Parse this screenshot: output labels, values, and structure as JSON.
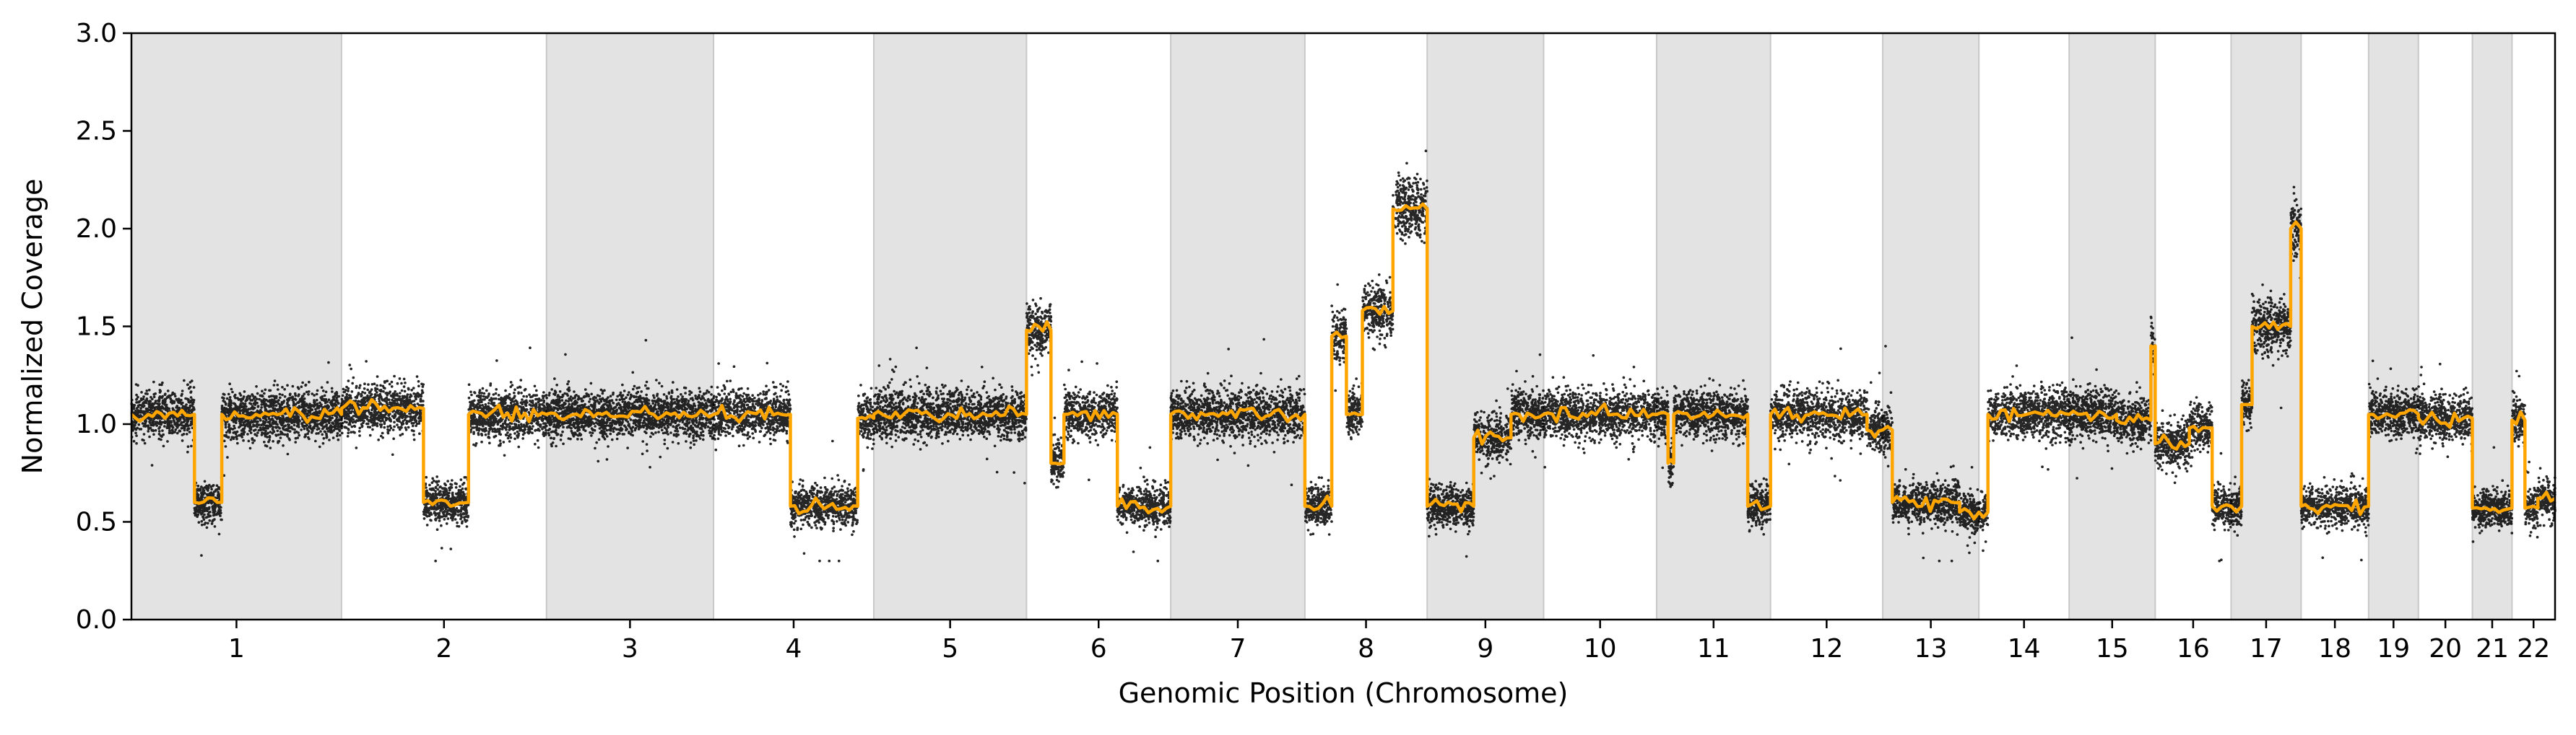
{
  "chart_data": {
    "type": "scatter",
    "xlabel": "Genomic Position (Chromosome)",
    "ylabel": "Normalized Coverage",
    "ylim": [
      0,
      3.0
    ],
    "yticks": [
      "0.0",
      "0.5",
      "1.0",
      "1.5",
      "2.0",
      "2.5",
      "3.0"
    ],
    "grid": false,
    "legend": "none",
    "shading": "alternating grey bands mark odd chromosomes",
    "colors": {
      "points": "#000000",
      "segments": "#ffa500",
      "band": "#e3e3e3",
      "band_edge": "#c8c8c8"
    },
    "chromosomes": [
      {
        "label": "1",
        "length": 249,
        "cn": [
          [
            0,
            0.3,
            1.05
          ],
          [
            0.3,
            0.43,
            0.6
          ],
          [
            0.43,
            1.0,
            1.05
          ]
        ]
      },
      {
        "label": "2",
        "length": 243,
        "cn": [
          [
            0,
            0.4,
            1.08
          ],
          [
            0.4,
            0.62,
            0.6
          ],
          [
            0.62,
            1.0,
            1.05
          ]
        ]
      },
      {
        "label": "3",
        "length": 198,
        "cn": [
          [
            0,
            1.0,
            1.05
          ]
        ]
      },
      {
        "label": "4",
        "length": 190,
        "cn": [
          [
            0,
            0.48,
            1.05
          ],
          [
            0.48,
            0.9,
            0.58
          ],
          [
            0.9,
            1.0,
            1.03
          ]
        ]
      },
      {
        "label": "5",
        "length": 181,
        "cn": [
          [
            0,
            1.0,
            1.05
          ]
        ]
      },
      {
        "label": "6",
        "length": 171,
        "cn": [
          [
            0,
            0.17,
            1.48
          ],
          [
            0.17,
            0.26,
            0.8
          ],
          [
            0.26,
            0.63,
            1.05
          ],
          [
            0.63,
            1.0,
            0.58
          ]
        ]
      },
      {
        "label": "7",
        "length": 159,
        "cn": [
          [
            0,
            1.0,
            1.05
          ]
        ]
      },
      {
        "label": "8",
        "length": 145,
        "cn": [
          [
            0,
            0.22,
            0.58
          ],
          [
            0.22,
            0.34,
            1.45
          ],
          [
            0.34,
            0.47,
            1.05
          ],
          [
            0.47,
            0.72,
            1.58
          ],
          [
            0.72,
            1.0,
            2.1
          ]
        ]
      },
      {
        "label": "9",
        "length": 138,
        "cn": [
          [
            0,
            0.4,
            0.58
          ],
          [
            0.4,
            0.72,
            0.93
          ],
          [
            0.72,
            1.0,
            1.05
          ]
        ]
      },
      {
        "label": "10",
        "length": 134,
        "cn": [
          [
            0,
            1.0,
            1.05
          ]
        ]
      },
      {
        "label": "11",
        "length": 135,
        "cn": [
          [
            0,
            0.1,
            1.05
          ],
          [
            0.1,
            0.15,
            0.8
          ],
          [
            0.15,
            0.8,
            1.05
          ],
          [
            0.8,
            1.0,
            0.58
          ]
        ]
      },
      {
        "label": "12",
        "length": 133,
        "cn": [
          [
            0,
            0.86,
            1.05
          ],
          [
            0.86,
            1.0,
            0.97
          ]
        ]
      },
      {
        "label": "13",
        "length": 114,
        "cn": [
          [
            0,
            0.1,
            0.97
          ],
          [
            0.1,
            0.8,
            0.6
          ],
          [
            0.8,
            1.0,
            0.55
          ]
        ]
      },
      {
        "label": "14",
        "length": 107,
        "cn": [
          [
            0,
            0.1,
            0.55
          ],
          [
            0.1,
            1.0,
            1.05
          ]
        ]
      },
      {
        "label": "15",
        "length": 102,
        "cn": [
          [
            0,
            0.55,
            1.05
          ],
          [
            0.55,
            0.95,
            1.02
          ],
          [
            0.95,
            1.0,
            1.4
          ]
        ]
      },
      {
        "label": "16",
        "length": 90,
        "cn": [
          [
            0,
            0.45,
            0.9
          ],
          [
            0.45,
            0.75,
            0.98
          ],
          [
            0.75,
            1.0,
            0.58
          ]
        ]
      },
      {
        "label": "17",
        "length": 83,
        "cn": [
          [
            0,
            0.15,
            0.58
          ],
          [
            0.15,
            0.3,
            1.1
          ],
          [
            0.3,
            0.85,
            1.5
          ],
          [
            0.85,
            1.0,
            2.0
          ]
        ]
      },
      {
        "label": "18",
        "length": 80,
        "cn": [
          [
            0,
            1.0,
            0.58
          ]
        ]
      },
      {
        "label": "19",
        "length": 59,
        "cn": [
          [
            0,
            1.0,
            1.05
          ]
        ]
      },
      {
        "label": "20",
        "length": 64,
        "cn": [
          [
            0,
            1.0,
            1.03
          ]
        ]
      },
      {
        "label": "21",
        "length": 47,
        "cn": [
          [
            0,
            1.0,
            0.57
          ]
        ]
      },
      {
        "label": "22",
        "length": 51,
        "cn": [
          [
            0,
            0.3,
            1.02
          ],
          [
            0.3,
            0.6,
            0.57
          ],
          [
            0.6,
            1.0,
            0.62
          ]
        ]
      }
    ]
  }
}
